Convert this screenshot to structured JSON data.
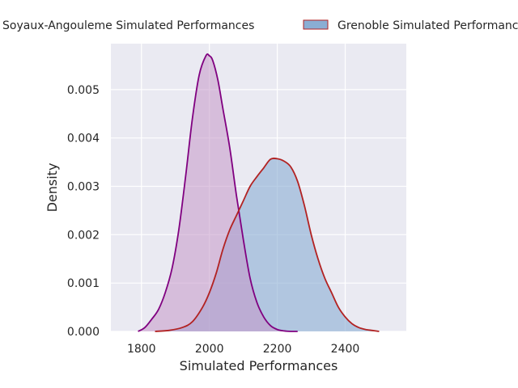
{
  "chart_data": {
    "type": "area",
    "title": "",
    "xlabel": "Simulated Performances",
    "ylabel": "Density",
    "xlim": [
      1710,
      2580
    ],
    "ylim": [
      0,
      0.00595
    ],
    "xticks": [
      1800,
      2000,
      2200,
      2400
    ],
    "xtick_labels": [
      "1800",
      "2000",
      "2200",
      "2400"
    ],
    "yticks": [
      0,
      0.001,
      0.002,
      0.003,
      0.004,
      0.005
    ],
    "ytick_labels": [
      "0.000",
      "0.001",
      "0.002",
      "0.003",
      "0.004",
      "0.005"
    ],
    "grid": true,
    "legend_position": "top",
    "series": [
      {
        "name": "Soyaux-Angouleme Simulated Performances",
        "legend_label": "Soyaux-Angouleme Simulated Performances",
        "line_color": "#800080",
        "fill_color": "#c597c9",
        "x": [
          1790,
          1810,
          1830,
          1850,
          1870,
          1890,
          1910,
          1930,
          1950,
          1970,
          1990,
          2000,
          2010,
          2025,
          2040,
          2060,
          2080,
          2100,
          2120,
          2140,
          2160,
          2180,
          2200,
          2220,
          2240,
          2260
        ],
        "y": [
          0.0,
          8e-05,
          0.00025,
          0.00045,
          0.0008,
          0.0013,
          0.0021,
          0.0032,
          0.0044,
          0.0053,
          0.0057,
          0.0057,
          0.0056,
          0.0052,
          0.0046,
          0.0038,
          0.0028,
          0.0019,
          0.0011,
          0.0006,
          0.0003,
          0.00012,
          4e-05,
          1e-05,
          0.0,
          0.0
        ]
      },
      {
        "name": "Grenoble Simulated Performances",
        "legend_label": "Grenoble Simulated Performances",
        "line_color": "#b22222",
        "fill_color": "#8aaed4",
        "x": [
          1840,
          1880,
          1920,
          1950,
          1980,
          2000,
          2020,
          2040,
          2060,
          2080,
          2100,
          2120,
          2140,
          2160,
          2180,
          2200,
          2220,
          2240,
          2260,
          2280,
          2300,
          2320,
          2340,
          2360,
          2380,
          2400,
          2420,
          2440,
          2460,
          2480,
          2500
        ],
        "y": [
          0.0,
          2e-05,
          8e-05,
          0.0002,
          0.0005,
          0.0008,
          0.0012,
          0.0017,
          0.0021,
          0.0024,
          0.0027,
          0.003,
          0.0032,
          0.00338,
          0.00356,
          0.00357,
          0.00352,
          0.0034,
          0.0031,
          0.0026,
          0.002,
          0.0015,
          0.0011,
          0.0008,
          0.0005,
          0.0003,
          0.00016,
          8e-05,
          4e-05,
          2e-05,
          0.0
        ]
      }
    ]
  }
}
